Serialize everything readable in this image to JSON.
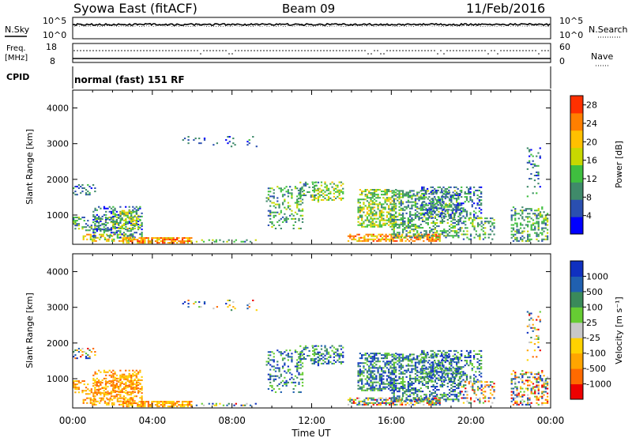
{
  "header": {
    "station": "Syowa East (fitACF)",
    "beam": "Beam 09",
    "date": "11/Feb/2016"
  },
  "noise_panel": {
    "left_label": "N.Sky",
    "right_label": "N.Search",
    "left_ticks": [
      "10^5",
      "10^0"
    ],
    "right_ticks": [
      "10^5",
      "10^0"
    ]
  },
  "freq_panel": {
    "left_label_1": "Freq.",
    "left_label_2": "[MHz]",
    "left_ticks": [
      "18",
      "8"
    ],
    "right_label": "Nave",
    "right_ticks": [
      "60",
      "0"
    ]
  },
  "cpid_panel": {
    "label": "CPID",
    "text": "normal (fast) 151 RF"
  },
  "colors": {
    "power": [
      "#0000ff",
      "#2a4fb0",
      "#3f8a6a",
      "#3fbf3f",
      "#c8d800",
      "#ffc000",
      "#ff7f00",
      "#ff3000"
    ],
    "velocity": [
      "#ee0000",
      "#ff6a00",
      "#ffa500",
      "#ffd200",
      "#c8c8c8",
      "#66cc33",
      "#3a8a5a",
      "#2060b0",
      "#1030c0"
    ]
  },
  "chart_data": [
    {
      "type": "heatmap",
      "name": "power-panel",
      "ylabel": "Slant Range [km]",
      "yticks": [
        "1000",
        "2000",
        "3000",
        "4000"
      ],
      "ylim": [
        180,
        4500
      ],
      "xlim": [
        0,
        24
      ],
      "colorbar_label": "Power [dB]",
      "colorbar_ticks": [
        "4",
        "8",
        "12",
        "16",
        "20",
        "24",
        "28"
      ],
      "colorbar_range": [
        0,
        30
      ]
    },
    {
      "type": "heatmap",
      "name": "velocity-panel",
      "ylabel": "Slant Range [km]",
      "yticks": [
        "1000",
        "2000",
        "3000",
        "4000"
      ],
      "ylim": [
        180,
        4500
      ],
      "xlim": [
        0,
        24
      ],
      "xticks": [
        "00:00",
        "04:00",
        "08:00",
        "12:00",
        "16:00",
        "20:00",
        "00:00"
      ],
      "xlabel": "Time UT",
      "colorbar_label": "Velocity [m s⁻¹]",
      "colorbar_ticks": [
        "1000",
        "500",
        "100",
        "25",
        "-25",
        "-100",
        "-500",
        "-1000"
      ]
    }
  ]
}
